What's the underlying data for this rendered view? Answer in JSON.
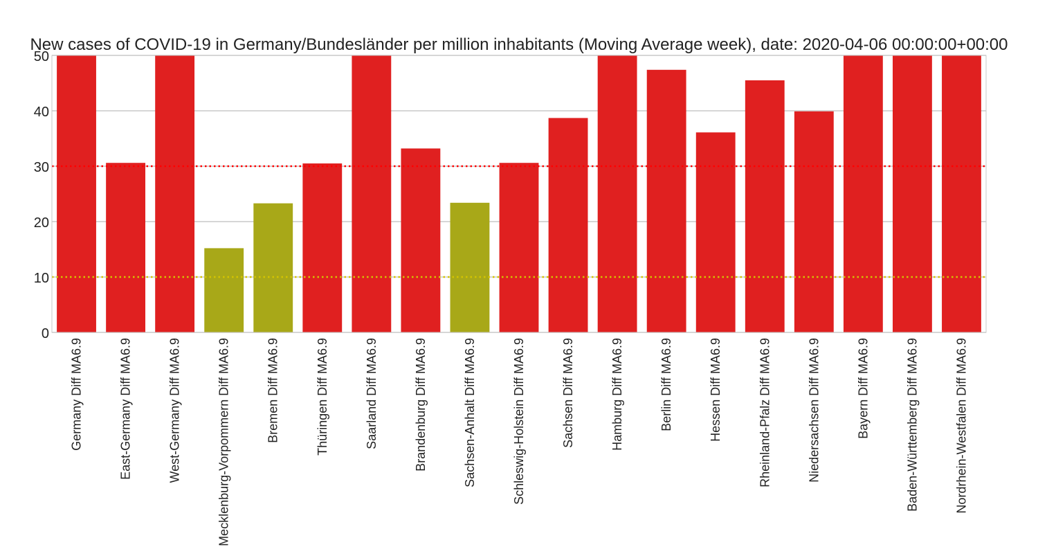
{
  "chart_data": {
    "type": "bar",
    "title": "New cases of COVID-19 in Germany/Bundesländer per million inhabitants (Moving Average week), date: 2020-04-06 00:00:00+00:00",
    "xlabel": "",
    "ylabel": "",
    "ylim": [
      0,
      50
    ],
    "yticks": [
      0,
      10,
      20,
      30,
      40,
      50
    ],
    "grid": true,
    "categories": [
      "Germany Diff MA6.9",
      "East-Germany Diff MA6.9",
      "West-Germany Diff MA6.9",
      "Mecklenburg-Vorpommern Diff MA6.9",
      "Bremen Diff MA6.9",
      "Thüringen Diff MA6.9",
      "Saarland Diff MA6.9",
      "Brandenburg Diff MA6.9",
      "Sachsen-Anhalt Diff MA6.9",
      "Schleswig-Holstein Diff MA6.9",
      "Sachsen Diff MA6.9",
      "Hamburg Diff MA6.9",
      "Berlin Diff MA6.9",
      "Hessen Diff MA6.9",
      "Rheinland-Pfalz Diff MA6.9",
      "Niedersachsen Diff MA6.9",
      "Bayern Diff MA6.9",
      "Baden-Württemberg Diff MA6.9",
      "Nordrhein-Westfalen Diff MA6.9"
    ],
    "values": [
      50,
      30.6,
      50,
      15.2,
      23.3,
      30.5,
      50,
      33.2,
      23.4,
      30.6,
      38.7,
      50,
      47.4,
      36.1,
      45.5,
      39.9,
      50,
      50,
      50
    ],
    "bar_colors": [
      "#e02020",
      "#e02020",
      "#e02020",
      "#a8a818",
      "#a8a818",
      "#e02020",
      "#e02020",
      "#e02020",
      "#a8a818",
      "#e02020",
      "#e02020",
      "#e02020",
      "#e02020",
      "#e02020",
      "#e02020",
      "#e02020",
      "#e02020",
      "#e02020",
      "#e02020"
    ],
    "reference_lines": [
      {
        "y": 30,
        "color": "#ff0000",
        "style": "dotted"
      },
      {
        "y": 10,
        "color": "#d4c400",
        "style": "dotted"
      }
    ]
  }
}
